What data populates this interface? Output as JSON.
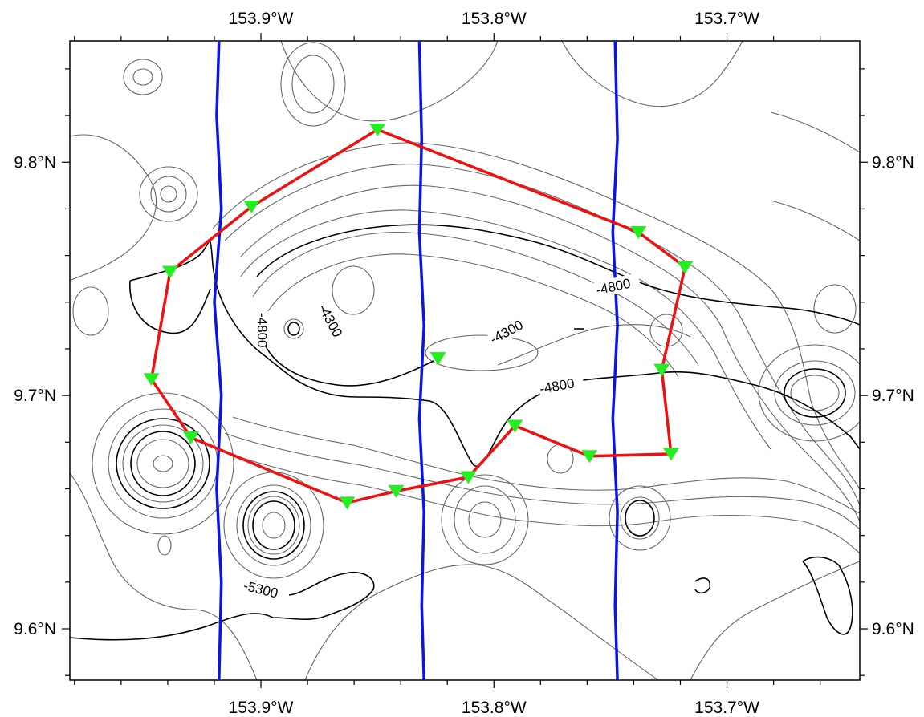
{
  "map": {
    "lon_range": [
      -153.982,
      -153.643
    ],
    "lat_range": [
      9.578,
      9.852
    ],
    "lon_ticks": [
      {
        "value": -153.9,
        "label": "153.9°W"
      },
      {
        "value": -153.8,
        "label": "153.8°W"
      },
      {
        "value": -153.7,
        "label": "153.7°W"
      }
    ],
    "lat_ticks": [
      {
        "value": 9.8,
        "label": "9.8°N"
      },
      {
        "value": 9.7,
        "label": "9.7°N"
      },
      {
        "value": 9.6,
        "label": "9.6°N"
      }
    ],
    "contour_labels": [
      "-4800",
      "-4300",
      "-4800",
      "-4300",
      "-4800",
      "-5300"
    ],
    "colors": {
      "survey_line": "#0a14e6",
      "station_track": "#f01010",
      "station_marker": "#22ee22",
      "contour_major": "#000000",
      "contour_minor": "#666666"
    },
    "survey_lines": [
      [
        [
          -153.918,
          9.852
        ],
        [
          -153.919,
          9.82
        ],
        [
          -153.917,
          9.78
        ],
        [
          -153.92,
          9.74
        ],
        [
          -153.917,
          9.7
        ],
        [
          -153.919,
          9.66
        ],
        [
          -153.917,
          9.62
        ],
        [
          -153.918,
          9.578
        ]
      ],
      [
        [
          -153.832,
          9.852
        ],
        [
          -153.831,
          9.81
        ],
        [
          -153.832,
          9.77
        ],
        [
          -153.83,
          9.73
        ],
        [
          -153.832,
          9.69
        ],
        [
          -153.83,
          9.65
        ],
        [
          -153.831,
          9.61
        ],
        [
          -153.83,
          9.578
        ]
      ],
      [
        [
          -153.748,
          9.852
        ],
        [
          -153.747,
          9.81
        ],
        [
          -153.749,
          9.77
        ],
        [
          -153.747,
          9.73
        ],
        [
          -153.749,
          9.69
        ],
        [
          -153.747,
          9.65
        ],
        [
          -153.748,
          9.61
        ],
        [
          -153.747,
          9.578
        ]
      ]
    ],
    "stations": [
      {
        "lon": -153.85,
        "lat": 9.814
      },
      {
        "lon": -153.904,
        "lat": 9.781
      },
      {
        "lon": -153.939,
        "lat": 9.753
      },
      {
        "lon": -153.947,
        "lat": 9.707
      },
      {
        "lon": -153.93,
        "lat": 9.682
      },
      {
        "lon": -153.863,
        "lat": 9.654
      },
      {
        "lon": -153.842,
        "lat": 9.659
      },
      {
        "lon": -153.811,
        "lat": 9.665
      },
      {
        "lon": -153.791,
        "lat": 9.687
      },
      {
        "lon": -153.759,
        "lat": 9.674
      },
      {
        "lon": -153.724,
        "lat": 9.675
      },
      {
        "lon": -153.728,
        "lat": 9.711
      },
      {
        "lon": -153.718,
        "lat": 9.755
      },
      {
        "lon": -153.738,
        "lat": 9.77
      }
    ],
    "isolated_station": {
      "lon": -153.824,
      "lat": 9.716
    }
  }
}
